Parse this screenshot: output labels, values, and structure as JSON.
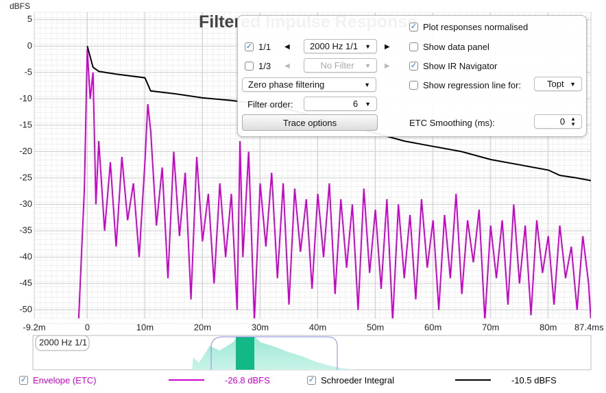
{
  "chart_data": {
    "type": "line",
    "title": "Filtered Impulse Response",
    "y_label": "dBFS",
    "xlim": [
      -9.2,
      87.4
    ],
    "ylim": [
      -51.6,
      6.4
    ],
    "xticks": [
      {
        "value": -9.2,
        "label": "-9.2m"
      },
      0,
      {
        "value": 10,
        "label": "10m"
      },
      {
        "value": 20,
        "label": "20m"
      },
      {
        "value": 30,
        "label": "30m"
      },
      {
        "value": 40,
        "label": "40m"
      },
      {
        "value": 50,
        "label": "50m"
      },
      {
        "value": 60,
        "label": "60m"
      },
      {
        "value": 70,
        "label": "70m"
      },
      {
        "value": 80,
        "label": "80m"
      },
      {
        "value": 87.4,
        "label": "87.4ms"
      }
    ],
    "yticks": [
      5,
      0,
      -5,
      -10,
      -15,
      -20,
      -25,
      -30,
      -35,
      -40,
      -45,
      -50
    ],
    "grid": true,
    "series": [
      {
        "name": "Envelope (ETC)",
        "color": "#cc00cc",
        "checked": true,
        "readout": "-26.8 dBFS",
        "x": [
          -1.5,
          -0.5,
          0,
          0.5,
          1,
          1.5,
          2,
          3,
          4,
          5,
          6,
          7,
          8,
          9,
          10,
          10.5,
          11,
          12,
          13,
          14,
          15,
          16,
          17,
          18,
          19,
          20,
          21,
          22,
          23,
          24,
          25,
          26,
          26.5,
          27,
          28,
          29,
          30,
          31,
          32,
          33,
          34,
          35,
          36,
          37,
          38,
          39,
          40,
          41,
          42,
          43,
          44,
          45,
          46,
          47,
          48,
          49,
          50,
          51,
          52,
          53,
          54,
          55,
          56,
          57,
          58,
          59,
          60,
          61,
          62,
          63,
          64,
          65,
          66,
          67,
          68,
          69,
          70,
          71,
          72,
          73,
          74,
          75,
          76,
          77,
          78,
          79,
          80,
          81,
          82,
          83,
          84,
          85,
          86,
          87,
          87.4
        ],
        "values": [
          -52,
          -27,
          -0.5,
          -10,
          -5,
          -30,
          -18,
          -35,
          -22,
          -38,
          -21,
          -33,
          -26,
          -40,
          -22,
          -11,
          -16,
          -34,
          -23,
          -44,
          -20,
          -36,
          -24,
          -48,
          -21,
          -37,
          -28,
          -45,
          -26,
          -40,
          -28,
          -50,
          -18,
          -40,
          -20,
          -52,
          -26,
          -38,
          -24,
          -44,
          -26,
          -49,
          -27,
          -39,
          -29,
          -46,
          -28,
          -40,
          -26,
          -47,
          -29,
          -42,
          -30,
          -50,
          -27,
          -43,
          -31,
          -46,
          -29,
          -52,
          -30,
          -44,
          -32,
          -48,
          -29,
          -42,
          -33,
          -50,
          -32,
          -44,
          -28,
          -47,
          -33,
          -41,
          -31,
          -52,
          -34,
          -44,
          -33,
          -49,
          -30,
          -45,
          -34,
          -51,
          -33,
          -43,
          -36,
          -49,
          -34,
          -44,
          -38,
          -50,
          -36,
          -45,
          -52
        ]
      },
      {
        "name": "Schroeder Integral",
        "color": "#000000",
        "checked": true,
        "readout": "-10.5 dBFS",
        "x": [
          0,
          1,
          2,
          5,
          10,
          11,
          15,
          20,
          25,
          30,
          35,
          40,
          45,
          50,
          55,
          60,
          65,
          70,
          75,
          80,
          82,
          85,
          87.4
        ],
        "values": [
          0,
          -4,
          -4.8,
          -5.3,
          -6,
          -8.5,
          -9,
          -9.8,
          -10.3,
          -11,
          -12,
          -13.5,
          -15,
          -16.5,
          -18,
          -19,
          -20,
          -21.5,
          -22.5,
          -23.5,
          -24.5,
          -25,
          -25.5
        ]
      }
    ]
  },
  "controls": {
    "normalise": {
      "label": "Plot responses normalised",
      "checked": true
    },
    "octave_1_1": {
      "label": "1/1",
      "checked": true,
      "value": "2000 Hz 1/1"
    },
    "octave_1_3": {
      "label": "1/3",
      "checked": false,
      "value": "No Filter"
    },
    "data_panel": {
      "label": "Show data panel",
      "checked": false
    },
    "ir_navigator": {
      "label": "Show IR Navigator",
      "checked": true
    },
    "phase": "Zero phase filtering",
    "regression": {
      "label": "Show regression line for:",
      "checked": false,
      "value": "Topt"
    },
    "filter_order": {
      "label": "Filter order:",
      "value": "6"
    },
    "trace_options": "Trace options",
    "smoothing": {
      "label": "ETC Smoothing (ms):",
      "value": "0"
    }
  },
  "navigator": {
    "label": "2000 Hz 1/1"
  }
}
